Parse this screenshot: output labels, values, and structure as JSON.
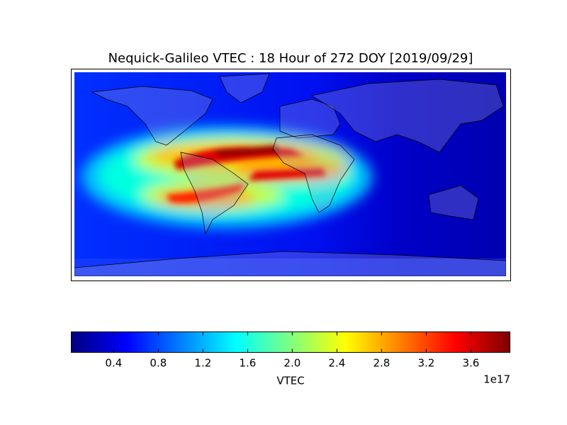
{
  "map": {
    "title": "Nequick-Galileo VTEC : 18 Hour of 272 DOY [2019/09/29]",
    "colorbar": {
      "label": "VTEC",
      "offset_label": "1e17",
      "clim": [
        0.02,
        3.95
      ],
      "ticks": [
        0.4,
        0.8,
        1.2,
        1.6,
        {
          "value": 2,
          "label": "2.0"
        },
        2.4,
        2.8,
        3.2,
        3.6
      ]
    }
  }
}
